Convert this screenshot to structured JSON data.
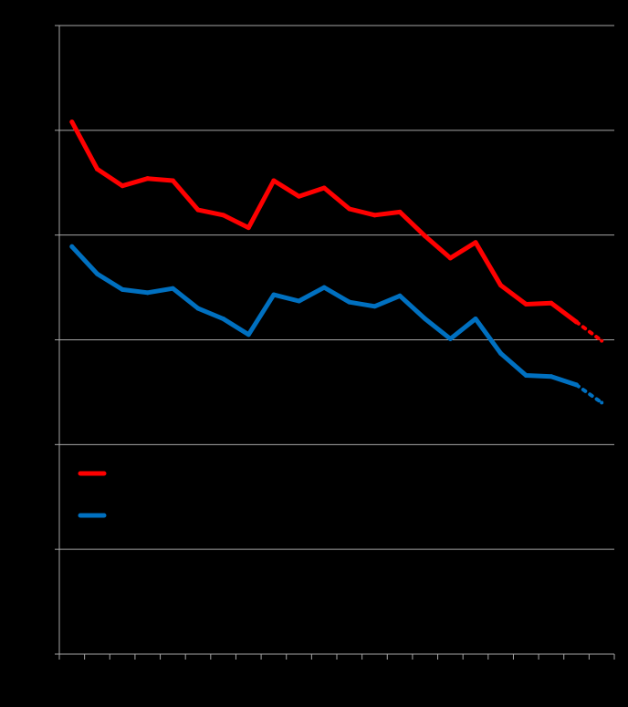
{
  "chart_data": {
    "type": "line",
    "title": "",
    "xlabel": "",
    "ylabel": "",
    "background": "#000000",
    "grid": true,
    "grid_color": "#a6a6a6",
    "axis_color": "#a6a6a6",
    "legend_position": "lower-left",
    "ylim": [
      0,
      6
    ],
    "yticks": [
      0,
      1,
      2,
      3,
      4,
      5,
      6
    ],
    "x_count": 22,
    "series": [
      {
        "color": "#ff0000",
        "values": [
          5.08,
          4.63,
          4.47,
          4.54,
          4.52,
          4.24,
          4.19,
          4.07,
          4.52,
          4.37,
          4.45,
          4.25,
          4.19,
          4.22,
          3.99,
          3.78,
          3.93,
          3.52,
          3.34,
          3.35,
          3.17
        ],
        "projected": [
          3.17,
          2.99
        ]
      },
      {
        "color": "#0070c0",
        "values": [
          3.89,
          3.63,
          3.48,
          3.45,
          3.49,
          3.3,
          3.2,
          3.05,
          3.43,
          3.37,
          3.5,
          3.36,
          3.32,
          3.42,
          3.2,
          3.01,
          3.2,
          2.87,
          2.66,
          2.65,
          2.57
        ],
        "projected": [
          2.57,
          2.4
        ]
      }
    ]
  }
}
